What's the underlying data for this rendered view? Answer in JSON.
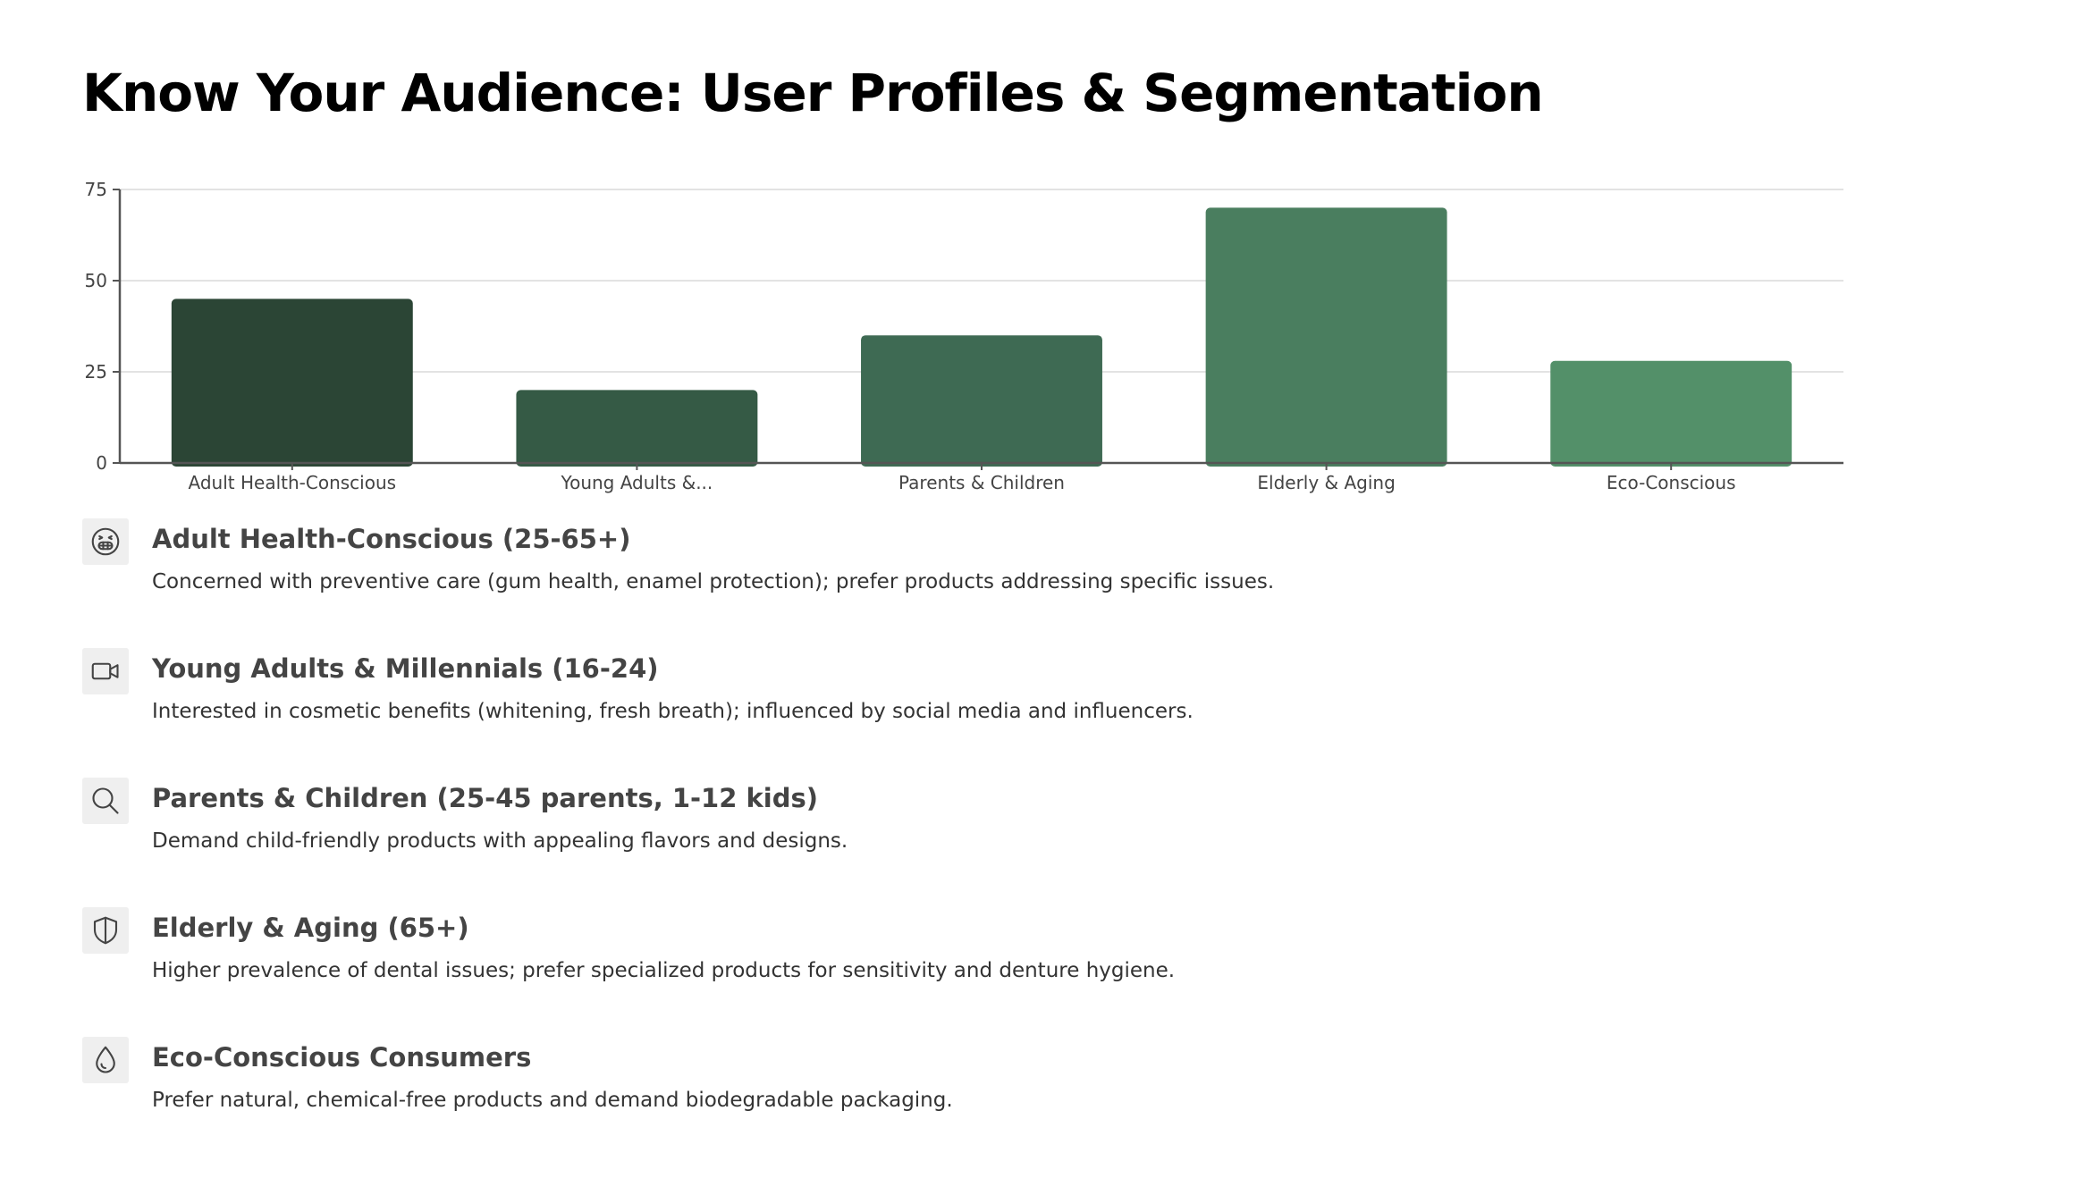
{
  "page": {
    "title": "Know Your Audience: User Profiles & Segmentation"
  },
  "chart_data": {
    "type": "bar",
    "title": "",
    "xlabel": "",
    "ylabel": "",
    "categories": [
      "Adult Health-Conscious",
      "Young Adults &...",
      "Parents & Children",
      "Elderly & Aging",
      "Eco-Conscious"
    ],
    "values": [
      45,
      20,
      35,
      70,
      28
    ],
    "colors": [
      "#2b4535",
      "#355a45",
      "#3e6a53",
      "#4a7e5f",
      "#539069"
    ],
    "ylim": [
      0,
      75
    ],
    "yticks": [
      0,
      25,
      50,
      75
    ],
    "grid": true,
    "legend": "none"
  },
  "segments": [
    {
      "icon": "grinning-face-icon",
      "title": "Adult Health-Conscious (25-65+)",
      "description": "Concerned with preventive care (gum health, enamel protection); prefer products addressing specific issues."
    },
    {
      "icon": "video-camera-icon",
      "title": "Young Adults & Millennials (16-24)",
      "description": "Interested in cosmetic benefits (whitening, fresh breath); influenced by social media and influencers."
    },
    {
      "icon": "search-icon",
      "title": "Parents & Children (25-45 parents, 1-12 kids)",
      "description": "Demand child-friendly products with appealing flavors and designs."
    },
    {
      "icon": "shield-icon",
      "title": "Elderly & Aging (65+)",
      "description": "Higher prevalence of dental issues; prefer specialized products for sensitivity and denture hygiene."
    },
    {
      "icon": "water-drop-icon",
      "title": "Eco-Conscious Consumers",
      "description": "Prefer natural, chemical-free products and demand biodegradable packaging."
    }
  ]
}
